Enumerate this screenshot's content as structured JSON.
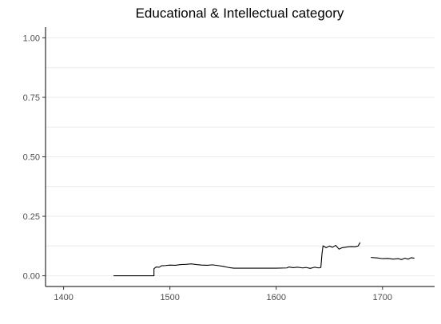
{
  "chart_data": {
    "type": "line",
    "title": "Educational & Intellectual category",
    "xlabel": "",
    "ylabel": "",
    "xlim": [
      1383,
      1749
    ],
    "ylim": [
      -0.045,
      1.045
    ],
    "x_ticks": [
      1400,
      1500,
      1600,
      1700
    ],
    "y_ticks": [
      0.0,
      0.25,
      0.5,
      0.75,
      1.0
    ],
    "x_tick_labels": [
      "1400",
      "1500",
      "1600",
      "1700"
    ],
    "y_tick_labels": [
      "0.00",
      "0.25",
      "0.50",
      "0.75",
      "1.00"
    ],
    "grid": "horizontal major and minor",
    "legend": "none",
    "line_color": "#000000",
    "series": [
      {
        "segments": [
          [
            [
              1447,
              0.0
            ],
            [
              1485,
              0.0
            ],
            [
              1485,
              0.03
            ],
            [
              1487,
              0.037
            ],
            [
              1490,
              0.036
            ],
            [
              1492,
              0.042
            ],
            [
              1496,
              0.043
            ],
            [
              1500,
              0.045
            ],
            [
              1505,
              0.044
            ],
            [
              1510,
              0.047
            ],
            [
              1515,
              0.048
            ],
            [
              1520,
              0.05
            ],
            [
              1525,
              0.047
            ],
            [
              1530,
              0.045
            ],
            [
              1535,
              0.044
            ],
            [
              1540,
              0.046
            ],
            [
              1545,
              0.043
            ],
            [
              1550,
              0.04
            ],
            [
              1555,
              0.035
            ],
            [
              1560,
              0.032
            ],
            [
              1570,
              0.032
            ],
            [
              1580,
              0.032
            ],
            [
              1590,
              0.032
            ],
            [
              1600,
              0.032
            ],
            [
              1610,
              0.033
            ],
            [
              1612,
              0.037
            ],
            [
              1616,
              0.034
            ],
            [
              1620,
              0.036
            ],
            [
              1625,
              0.033
            ],
            [
              1628,
              0.035
            ],
            [
              1632,
              0.031
            ],
            [
              1636,
              0.036
            ],
            [
              1640,
              0.033
            ],
            [
              1642,
              0.035
            ],
            [
              1643,
              0.09
            ],
            [
              1644,
              0.126
            ],
            [
              1647,
              0.118
            ],
            [
              1650,
              0.125
            ],
            [
              1653,
              0.12
            ],
            [
              1656,
              0.128
            ],
            [
              1659,
              0.112
            ],
            [
              1662,
              0.118
            ],
            [
              1665,
              0.12
            ],
            [
              1668,
              0.122
            ],
            [
              1671,
              0.123
            ],
            [
              1674,
              0.122
            ],
            [
              1677,
              0.125
            ],
            [
              1679,
              0.14
            ]
          ],
          [
            [
              1689,
              0.077
            ],
            [
              1695,
              0.075
            ],
            [
              1700,
              0.072
            ],
            [
              1705,
              0.073
            ],
            [
              1710,
              0.07
            ],
            [
              1715,
              0.072
            ],
            [
              1718,
              0.068
            ],
            [
              1721,
              0.074
            ],
            [
              1724,
              0.07
            ],
            [
              1727,
              0.076
            ],
            [
              1730,
              0.074
            ]
          ]
        ]
      }
    ]
  }
}
